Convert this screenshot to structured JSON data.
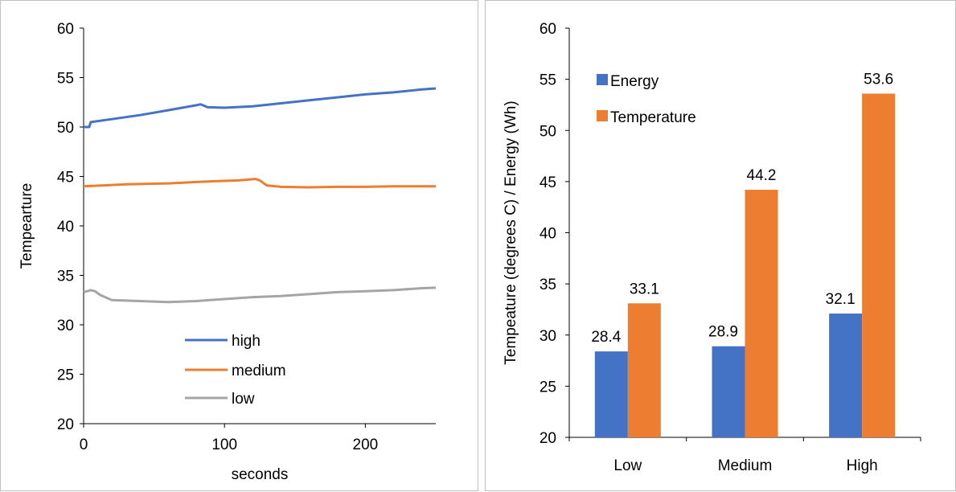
{
  "chart_data": [
    {
      "type": "line",
      "title": "",
      "xlabel": "seconds",
      "ylabel": "Tempearture",
      "xlim": [
        0,
        250
      ],
      "ylim": [
        20,
        60
      ],
      "xticks": [
        0,
        100,
        200
      ],
      "yticks": [
        20,
        25,
        30,
        35,
        40,
        45,
        50,
        55,
        60
      ],
      "grid": false,
      "legend_position": "bottom-center",
      "series": [
        {
          "name": "high",
          "color": "#4472C4",
          "points": [
            [
              0,
              50.0
            ],
            [
              4,
              50.0
            ],
            [
              5,
              50.5
            ],
            [
              20,
              50.8
            ],
            [
              40,
              51.2
            ],
            [
              60,
              51.7
            ],
            [
              80,
              52.2
            ],
            [
              83,
              52.3
            ],
            [
              88,
              52.0
            ],
            [
              100,
              51.95
            ],
            [
              120,
              52.1
            ],
            [
              140,
              52.4
            ],
            [
              160,
              52.7
            ],
            [
              180,
              53.0
            ],
            [
              200,
              53.3
            ],
            [
              220,
              53.5
            ],
            [
              240,
              53.8
            ],
            [
              250,
              53.9
            ]
          ]
        },
        {
          "name": "medium",
          "color": "#ED7D31",
          "points": [
            [
              0,
              44.0
            ],
            [
              30,
              44.2
            ],
            [
              60,
              44.3
            ],
            [
              90,
              44.5
            ],
            [
              110,
              44.6
            ],
            [
              122,
              44.75
            ],
            [
              125,
              44.6
            ],
            [
              130,
              44.1
            ],
            [
              140,
              43.95
            ],
            [
              160,
              43.9
            ],
            [
              180,
              43.95
            ],
            [
              200,
              43.95
            ],
            [
              220,
              44.0
            ],
            [
              250,
              44.0
            ]
          ]
        },
        {
          "name": "low",
          "color": "#A5A5A5",
          "points": [
            [
              0,
              33.3
            ],
            [
              5,
              33.5
            ],
            [
              8,
              33.4
            ],
            [
              12,
              33.0
            ],
            [
              20,
              32.5
            ],
            [
              40,
              32.4
            ],
            [
              60,
              32.3
            ],
            [
              80,
              32.4
            ],
            [
              100,
              32.6
            ],
            [
              120,
              32.8
            ],
            [
              140,
              32.9
            ],
            [
              160,
              33.1
            ],
            [
              180,
              33.3
            ],
            [
              200,
              33.4
            ],
            [
              220,
              33.5
            ],
            [
              240,
              33.7
            ],
            [
              250,
              33.75
            ]
          ]
        }
      ]
    },
    {
      "type": "bar",
      "title": "",
      "xlabel": "",
      "ylabel": "Tempeature (degrees C) / Energy (Wh)",
      "ylim": [
        20,
        60
      ],
      "yticks": [
        20,
        25,
        30,
        35,
        40,
        45,
        50,
        55,
        60
      ],
      "grid": false,
      "legend_position": "top-left",
      "categories": [
        "Low",
        "Medium",
        "High"
      ],
      "series": [
        {
          "name": "Energy",
          "color": "#4472C4",
          "values": [
            28.4,
            28.9,
            32.1
          ],
          "labels": [
            "28.4",
            "28.9",
            "32.1"
          ]
        },
        {
          "name": "Temperature",
          "color": "#ED7D31",
          "values": [
            33.1,
            44.2,
            53.6
          ],
          "labels": [
            "33.1",
            "44.2",
            "53.6"
          ]
        }
      ]
    }
  ]
}
